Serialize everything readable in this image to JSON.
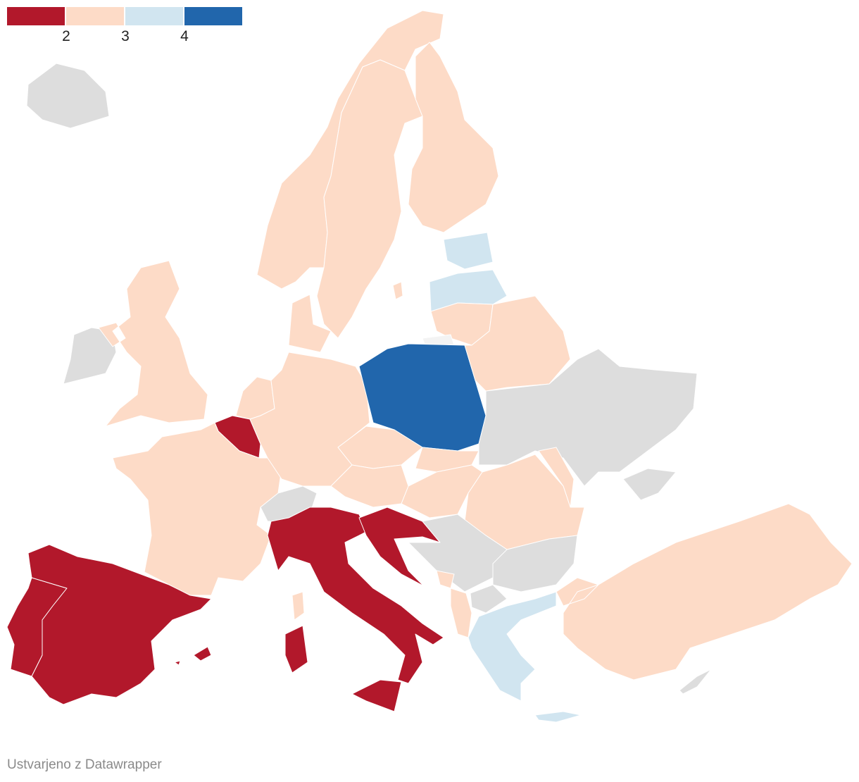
{
  "legend": {
    "bins": [
      {
        "color": "#b2182b"
      },
      {
        "color": "#fddbc7"
      },
      {
        "color": "#d1e5f0"
      },
      {
        "color": "#2166ac"
      }
    ],
    "ticks": [
      "2",
      "3",
      "4"
    ]
  },
  "no_data_color": "#dddddd",
  "region_bins": {
    "ES": 0,
    "PT": 0,
    "IT": 0,
    "BE": 0,
    "HR": 0,
    "SI": 0,
    "FR": 1,
    "NL": 1,
    "DE": 1,
    "DK": 1,
    "GB": 1,
    "NO": 1,
    "SE": 1,
    "FI": 1,
    "LT": 1,
    "BY": 1,
    "CZ": 1,
    "SK": 1,
    "AT": 1,
    "HU": 1,
    "RO": 1,
    "MD": 1,
    "AL": 1,
    "ME": 1,
    "TR": 1,
    "EE": 2,
    "LV": 2,
    "GR": 2,
    "PL": 3,
    "IS": null,
    "IE": null,
    "UA": null,
    "CH": null,
    "RS": null,
    "BG": null,
    "MK": null,
    "CY": null
  },
  "footer": "Ustvarjeno z Datawrapper"
}
